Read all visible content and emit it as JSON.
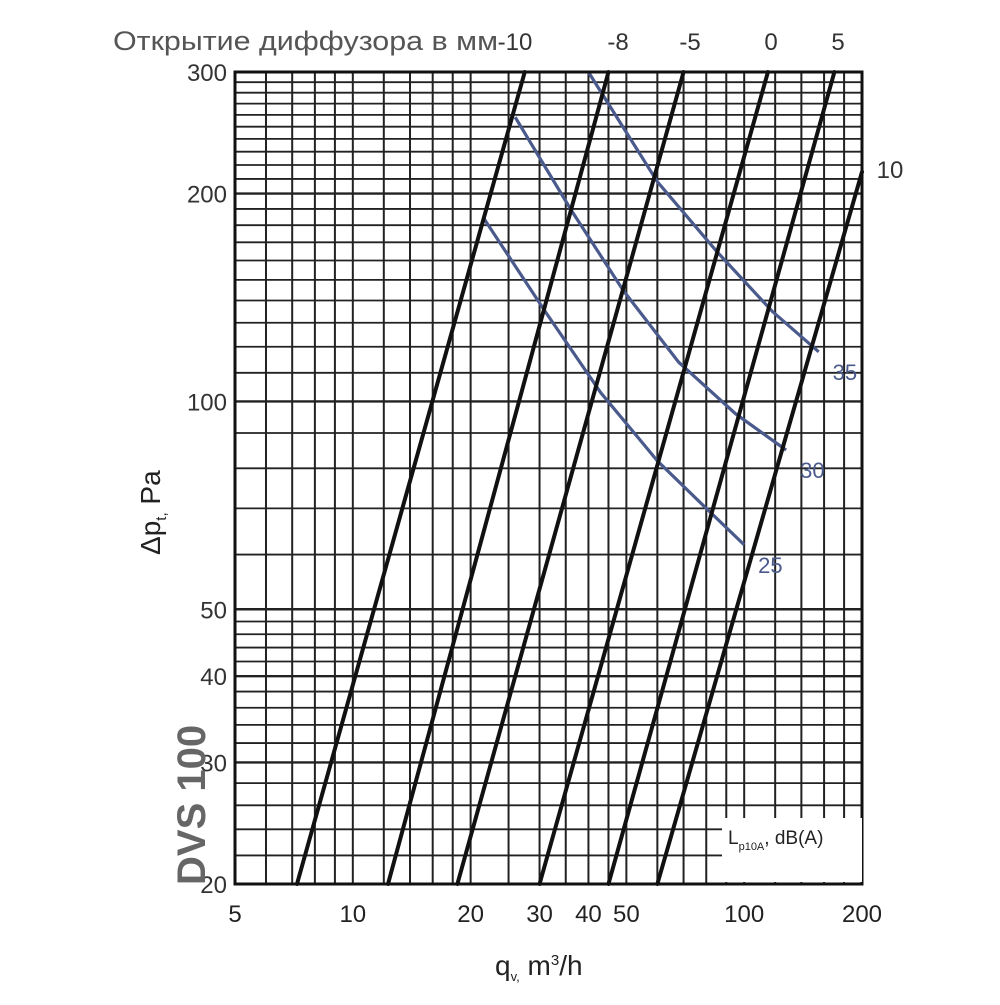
{
  "chart_data": {
    "type": "line",
    "title": "Открытие диффузора в мм",
    "model_label": "DVS 100",
    "xlabel_main": "q",
    "xlabel_sub": "v,",
    "xlabel_unit_pre": " m",
    "xlabel_unit_sup": "3",
    "xlabel_unit_post": "/h",
    "ylabel_main": "Δp",
    "ylabel_sub": "t,",
    "ylabel_unit": " Pa",
    "x_scale": "log",
    "y_scale": "log",
    "xlim": [
      5,
      200
    ],
    "ylim": [
      20,
      300
    ],
    "x_ticks": [
      5,
      10,
      20,
      30,
      40,
      50,
      100,
      200
    ],
    "y_ticks": [
      20,
      30,
      40,
      50,
      100,
      200,
      300
    ],
    "grid": true,
    "noise_label_main": "L",
    "noise_label_sub": "p10A",
    "noise_label_post": ", dB(A)",
    "top_axis_labels": [
      "-10",
      "-8",
      "-5",
      "0",
      "5",
      "10"
    ],
    "opening_series": [
      {
        "name": "-10",
        "points": [
          [
            7.2,
            20
          ],
          [
            27.5,
            300
          ]
        ]
      },
      {
        "name": "-8",
        "points": [
          [
            12.3,
            20
          ],
          [
            45,
            300
          ]
        ]
      },
      {
        "name": "-5",
        "points": [
          [
            18.5,
            20
          ],
          [
            70,
            300
          ]
        ]
      },
      {
        "name": "0",
        "points": [
          [
            30,
            20
          ],
          [
            115,
            300
          ]
        ]
      },
      {
        "name": "5",
        "points": [
          [
            45,
            20
          ],
          [
            170,
            300
          ]
        ]
      },
      {
        "name": "10",
        "points": [
          [
            60,
            20
          ],
          [
            200,
            215
          ]
        ]
      }
    ],
    "noise_series": [
      {
        "name": "25",
        "points": [
          [
            21.5,
            185
          ],
          [
            31,
            135
          ],
          [
            43,
            103
          ],
          [
            60,
            82
          ],
          [
            80,
            70
          ],
          [
            100,
            62
          ]
        ]
      },
      {
        "name": "30",
        "points": [
          [
            26,
            258
          ],
          [
            36,
            190
          ],
          [
            49,
            145
          ],
          [
            68,
            114
          ],
          [
            95,
            96
          ],
          [
            128,
            85
          ]
        ]
      },
      {
        "name": "35",
        "points": [
          [
            40,
            300
          ],
          [
            60,
            208
          ],
          [
            85,
            165
          ],
          [
            118,
            135
          ],
          [
            155,
            118
          ]
        ]
      }
    ]
  }
}
